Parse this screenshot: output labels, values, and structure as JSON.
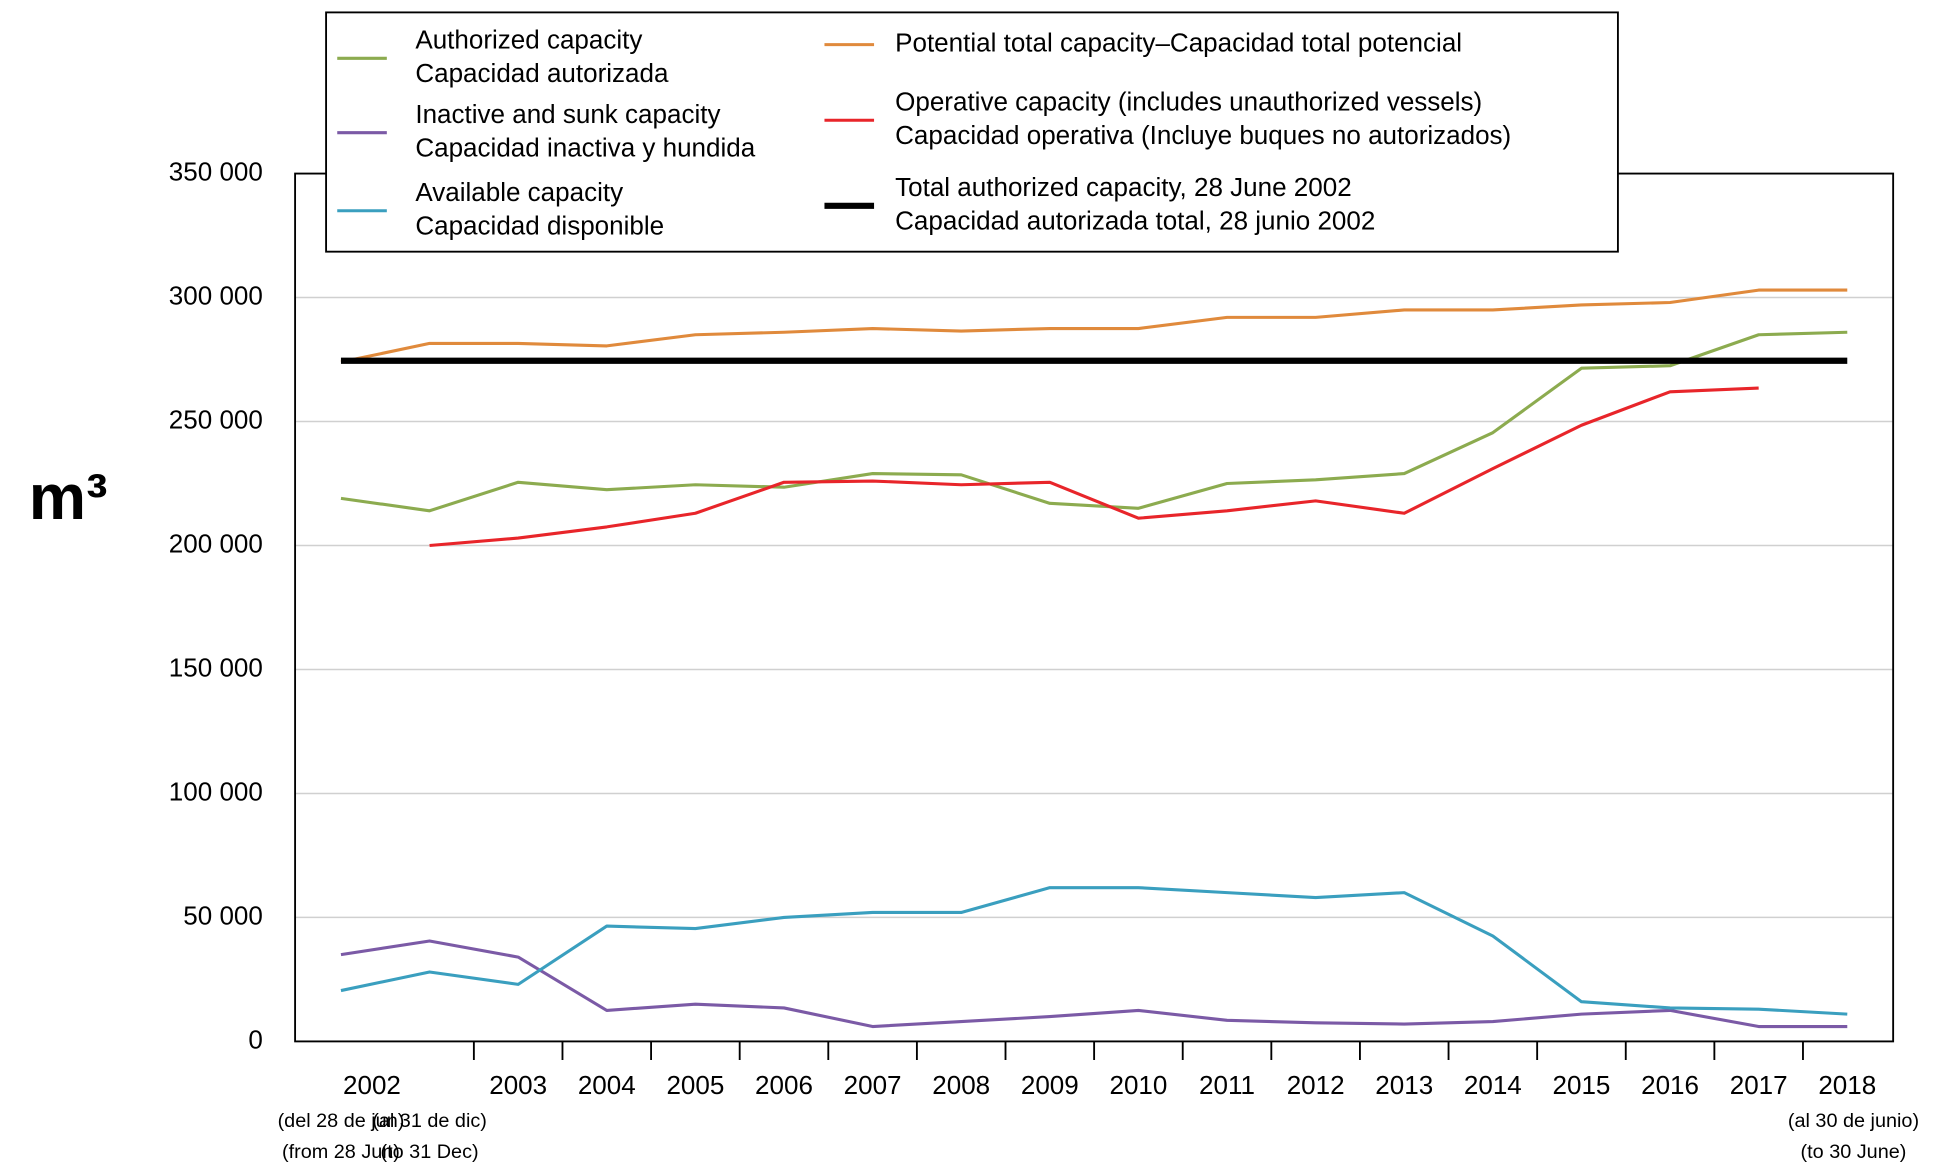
{
  "chart_data": {
    "type": "line",
    "y_label": "m³",
    "categories": [
      "2002",
      null,
      "2003",
      "2004",
      "2005",
      "2006",
      "2007",
      "2008",
      "2009",
      "2010",
      "2011",
      "2012",
      "2013",
      "2014",
      "2015",
      "2016",
      "2017",
      "2018"
    ],
    "category_notes": [
      [
        "(del 28 de jun)",
        "(from 28 Jun)"
      ],
      [
        "(al 31 de dic)",
        "(to 31 Dec)"
      ],
      null,
      null,
      null,
      null,
      null,
      null,
      null,
      null,
      null,
      null,
      null,
      null,
      null,
      null,
      null,
      [
        "(al 30 de junio)",
        "(to 30 June)"
      ]
    ],
    "ylim": [
      0,
      350000
    ],
    "yticks": [
      {
        "value": 0,
        "label": "0"
      },
      {
        "value": 50000,
        "label": "50 000"
      },
      {
        "value": 100000,
        "label": "100 000"
      },
      {
        "value": 150000,
        "label": "150 000"
      },
      {
        "value": 200000,
        "label": "200 000"
      },
      {
        "value": 250000,
        "label": "250 000"
      },
      {
        "value": 300000,
        "label": "300 000"
      },
      {
        "value": 350000,
        "label": "350 000"
      }
    ],
    "grid": true,
    "series": [
      {
        "name": [
          "Authorized capacity",
          "Capacidad autorizada"
        ],
        "color": "#8cab4f",
        "width": 2.5,
        "values": [
          219000,
          214000,
          225500,
          222500,
          224500,
          223500,
          229000,
          228500,
          217000,
          215000,
          225000,
          226500,
          229000,
          245500,
          271500,
          272500,
          285000,
          286000
        ]
      },
      {
        "name": [
          "Inactive and sunk capacity",
          "Capacidad inactiva y hundida"
        ],
        "color": "#7b5aa6",
        "width": 2.5,
        "values": [
          35000,
          40500,
          34000,
          12500,
          15000,
          13500,
          6000,
          8000,
          10000,
          12500,
          8500,
          7500,
          7000,
          8000,
          11000,
          12500,
          6000,
          6000
        ]
      },
      {
        "name": [
          "Available capacity",
          "Capacidad disponible"
        ],
        "color": "#3a9fbf",
        "width": 2.5,
        "values": [
          20500,
          28000,
          23000,
          46500,
          45500,
          50000,
          52000,
          52000,
          62000,
          62000,
          60000,
          58000,
          60000,
          42500,
          16000,
          13500,
          13000,
          11000
        ]
      },
      {
        "name": [
          "Potential total capacity–Capacidad total potencial"
        ],
        "color": "#e08a3c",
        "width": 2.5,
        "values": [
          274000,
          281500,
          281500,
          280500,
          285000,
          286000,
          287500,
          286500,
          287500,
          287500,
          292000,
          292000,
          295000,
          295000,
          297000,
          298000,
          303000,
          303000
        ]
      },
      {
        "name": [
          "Operative capacity (includes unauthorized vessels)",
          "Capacidad operativa (Incluye buques no autorizados)"
        ],
        "color": "#e8252a",
        "width": 2.5,
        "values": [
          null,
          200000,
          203000,
          207500,
          213000,
          225500,
          226000,
          224500,
          225500,
          211000,
          214000,
          218000,
          213000,
          231000,
          248500,
          262000,
          263500,
          null
        ]
      },
      {
        "name": [
          "Total authorized capacity, 28 June 2002",
          "Capacidad autorizada total, 28 junio 2002"
        ],
        "color": "#000000",
        "width": 5,
        "values": [
          274500,
          274500,
          274500,
          274500,
          274500,
          274500,
          274500,
          274500,
          274500,
          274500,
          274500,
          274500,
          274500,
          274500,
          274500,
          274500,
          274500,
          274500
        ]
      }
    ]
  }
}
